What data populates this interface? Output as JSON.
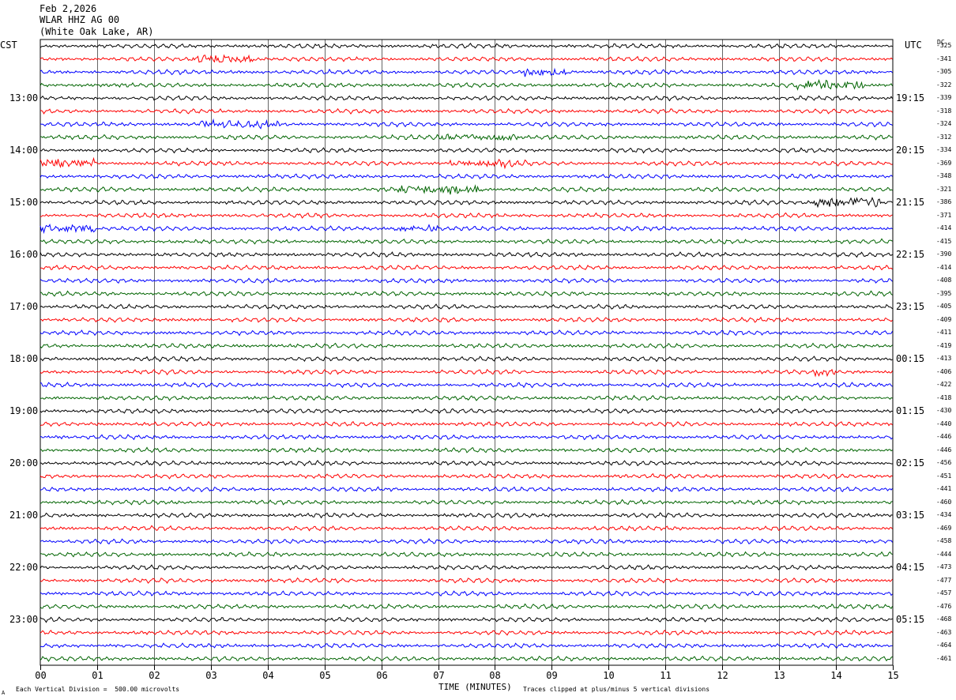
{
  "header": {
    "date": "Feb 2,2026",
    "station": "WLAR HHZ AG 00",
    "location": "(White Oak Lake, AR)"
  },
  "axis_labels": {
    "left": "CST",
    "right": "UTC",
    "dc": "DC",
    "x_title": "TIME (MINUTES)"
  },
  "footer": {
    "scale_note": "Each Vertical Division =  500.00 microvolts",
    "clip_note": "Traces clipped at plus/minus 5 vertical divisions",
    "corner_mark": "A"
  },
  "colors": {
    "trace_cycle": [
      "#000000",
      "#ff0000",
      "#0000ff",
      "#006400"
    ],
    "grid": "#000000"
  },
  "chart_data": {
    "type": "line",
    "title": "",
    "xlabel": "TIME (MINUTES)",
    "ylabel": "",
    "x_ticks": [
      "00",
      "01",
      "02",
      "03",
      "04",
      "05",
      "06",
      "07",
      "08",
      "09",
      "10",
      "11",
      "12",
      "13",
      "14",
      "15"
    ],
    "xlim": [
      0,
      15
    ],
    "grid": true,
    "left_hour_labels": [
      {
        "row": 4,
        "text": "13:00"
      },
      {
        "row": 8,
        "text": "14:00"
      },
      {
        "row": 12,
        "text": "15:00"
      },
      {
        "row": 16,
        "text": "16:00"
      },
      {
        "row": 20,
        "text": "17:00"
      },
      {
        "row": 24,
        "text": "18:00"
      },
      {
        "row": 28,
        "text": "19:00"
      },
      {
        "row": 32,
        "text": "20:00"
      },
      {
        "row": 36,
        "text": "21:00"
      },
      {
        "row": 40,
        "text": "22:00"
      },
      {
        "row": 44,
        "text": "23:00"
      }
    ],
    "right_hour_labels": [
      {
        "row": 4,
        "text": "19:15"
      },
      {
        "row": 8,
        "text": "20:15"
      },
      {
        "row": 12,
        "text": "21:15"
      },
      {
        "row": 16,
        "text": "22:15"
      },
      {
        "row": 20,
        "text": "23:15"
      },
      {
        "row": 24,
        "text": "00:15"
      },
      {
        "row": 28,
        "text": "01:15"
      },
      {
        "row": 32,
        "text": "02:15"
      },
      {
        "row": 36,
        "text": "03:15"
      },
      {
        "row": 40,
        "text": "04:15"
      },
      {
        "row": 44,
        "text": "05:15"
      }
    ],
    "dc_offsets": [
      "-325",
      "-341",
      "-305",
      "-322",
      "-339",
      "-318",
      "-324",
      "-312",
      "-334",
      "-369",
      "-348",
      "-321",
      "-386",
      "-371",
      "-414",
      "-415",
      "-390",
      "-414",
      "-408",
      "-395",
      "-405",
      "-409",
      "-411",
      "-419",
      "-413",
      "-406",
      "-422",
      "-418",
      "-430",
      "-440",
      "-446",
      "-446",
      "-456",
      "-451",
      "-441",
      "-460",
      "-434",
      "-469",
      "-458",
      "-444",
      "-473",
      "-477",
      "-457",
      "-476",
      "-468",
      "-463",
      "-464",
      "-461"
    ],
    "bursts": [
      {
        "row": 1,
        "x": [
          2.7,
          3.8
        ],
        "amp": 2.2
      },
      {
        "row": 2,
        "x": [
          8.5,
          9.4
        ],
        "amp": 2.0
      },
      {
        "row": 3,
        "x": [
          13.3,
          14.5
        ],
        "amp": 2.2
      },
      {
        "row": 6,
        "x": [
          2.8,
          4.2
        ],
        "amp": 1.6
      },
      {
        "row": 7,
        "x": [
          6.8,
          8.4
        ],
        "amp": 1.6
      },
      {
        "row": 9,
        "x": [
          0.0,
          1.0
        ],
        "amp": 2.0
      },
      {
        "row": 9,
        "x": [
          7.2,
          8.6
        ],
        "amp": 1.6
      },
      {
        "row": 11,
        "x": [
          6.2,
          7.8
        ],
        "amp": 1.8
      },
      {
        "row": 12,
        "x": [
          13.6,
          14.8
        ],
        "amp": 2.6
      },
      {
        "row": 14,
        "x": [
          0.0,
          1.0
        ],
        "amp": 2.0
      },
      {
        "row": 14,
        "x": [
          6.2,
          7.0
        ],
        "amp": 1.5
      },
      {
        "row": 25,
        "x": [
          13.6,
          14.0
        ],
        "amp": 1.8
      }
    ]
  }
}
